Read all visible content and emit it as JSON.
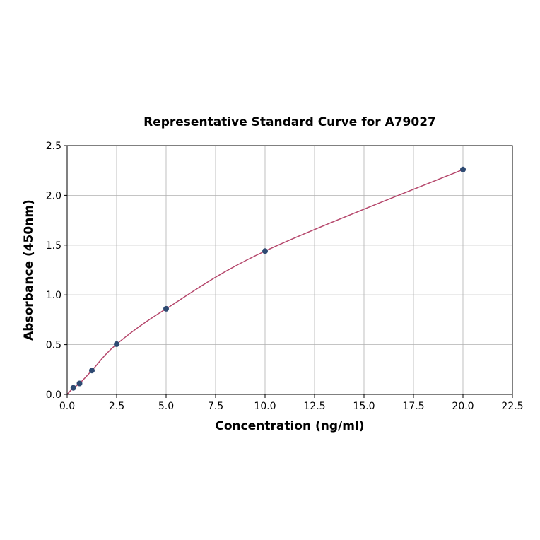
{
  "chart_data": {
    "type": "scatter",
    "title": "Representative Standard Curve for A79027",
    "xlabel": "Concentration (ng/ml)",
    "ylabel": "Absorbance (450nm)",
    "xlim": [
      0,
      22.5
    ],
    "ylim": [
      0,
      2.5
    ],
    "xticks": [
      "0.0",
      "2.5",
      "5.0",
      "7.5",
      "10.0",
      "12.5",
      "15.0",
      "17.5",
      "20.0",
      "22.5"
    ],
    "yticks": [
      "0.0",
      "0.5",
      "1.0",
      "1.5",
      "2.0",
      "2.5"
    ],
    "grid": true,
    "points": [
      {
        "x": 0.3125,
        "y": 0.066
      },
      {
        "x": 0.625,
        "y": 0.11
      },
      {
        "x": 1.25,
        "y": 0.24
      },
      {
        "x": 2.5,
        "y": 0.505
      },
      {
        "x": 5,
        "y": 0.86
      },
      {
        "x": 10,
        "y": 1.44
      },
      {
        "x": 20,
        "y": 2.26
      }
    ],
    "point_color": "#2e4a72",
    "curve_color": "#b5466b"
  }
}
